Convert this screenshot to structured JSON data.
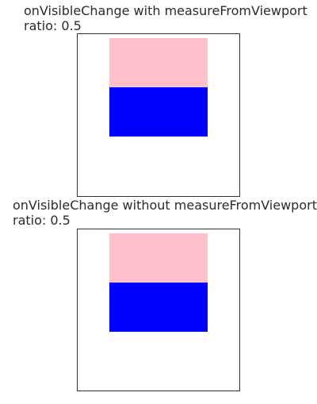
{
  "sections": [
    {
      "title": "onVisibleChange with measureFromViewport",
      "ratio_label": "ratio: 0.5",
      "blocks": {
        "top_color": "#ffc0cb",
        "bottom_color": "#0000ff"
      }
    },
    {
      "title": "onVisibleChange without measureFromViewport",
      "ratio_label": "ratio: 0.5",
      "blocks": {
        "top_color": "#ffc0cb",
        "bottom_color": "#0000ff"
      }
    }
  ],
  "colors": {
    "text": "#2b2b2b",
    "border": "#333333",
    "background": "#ffffff"
  }
}
